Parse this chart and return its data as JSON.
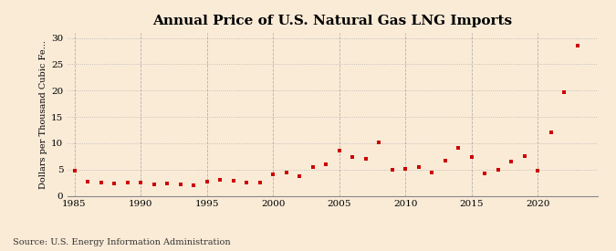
{
  "title": "Annual Price of U.S. Natural Gas LNG Imports",
  "ylabel": "Dollars per Thousand Cubic Fe...",
  "source": "Source: U.S. Energy Information Administration",
  "background_color": "#faebd7",
  "plot_bg_color": "#faebd7",
  "marker_color": "#cc0000",
  "years": [
    1985,
    1986,
    1987,
    1988,
    1989,
    1990,
    1991,
    1992,
    1993,
    1994,
    1995,
    1996,
    1997,
    1998,
    1999,
    2000,
    2001,
    2002,
    2003,
    2004,
    2005,
    2006,
    2007,
    2008,
    2009,
    2010,
    2011,
    2012,
    2013,
    2014,
    2015,
    2016,
    2017,
    2018,
    2019,
    2020,
    2021,
    2022,
    2023
  ],
  "values": [
    4.8,
    2.7,
    2.5,
    2.4,
    2.5,
    2.5,
    2.2,
    2.3,
    2.2,
    2.0,
    2.7,
    3.0,
    2.8,
    2.5,
    2.5,
    4.1,
    4.5,
    3.7,
    5.5,
    5.9,
    8.5,
    7.3,
    7.0,
    10.2,
    4.9,
    5.1,
    5.5,
    4.5,
    6.7,
    9.1,
    7.4,
    4.3,
    5.0,
    6.5,
    7.5,
    4.8,
    12.1,
    19.7,
    28.5
  ],
  "xlim": [
    1984.5,
    2024.5
  ],
  "ylim": [
    0,
    31
  ],
  "yticks": [
    0,
    5,
    10,
    15,
    20,
    25,
    30
  ],
  "xticks": [
    1985,
    1990,
    1995,
    2000,
    2005,
    2010,
    2015,
    2020
  ],
  "grid_color_v": "#aaaaaa",
  "grid_color_h": "#aaaaaa",
  "title_fontsize": 11,
  "label_fontsize": 7,
  "tick_fontsize": 7.5,
  "source_fontsize": 7,
  "marker_size": 3.5
}
